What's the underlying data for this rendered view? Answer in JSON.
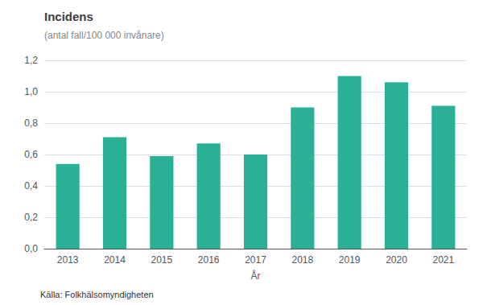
{
  "chart_data": {
    "type": "bar",
    "title": "Incidens",
    "subtitle": "(antal fall/100 000 invånare)",
    "xlabel": "År",
    "source": "Källa: Folkhälsomyndigheten",
    "categories": [
      "2013",
      "2014",
      "2015",
      "2016",
      "2017",
      "2018",
      "2019",
      "2020",
      "2021"
    ],
    "values": [
      0.54,
      0.71,
      0.59,
      0.67,
      0.6,
      0.9,
      1.1,
      1.06,
      0.91
    ],
    "color": "#2ab095",
    "ylim": [
      0,
      1.2
    ],
    "yticks": [
      {
        "value": 0.0,
        "label": "0,0"
      },
      {
        "value": 0.2,
        "label": "0,2"
      },
      {
        "value": 0.4,
        "label": "0,4"
      },
      {
        "value": 0.6,
        "label": "0,6"
      },
      {
        "value": 0.8,
        "label": "0,8"
      },
      {
        "value": 1.0,
        "label": "1,0"
      },
      {
        "value": 1.2,
        "label": "1,2"
      }
    ],
    "grid": true
  }
}
